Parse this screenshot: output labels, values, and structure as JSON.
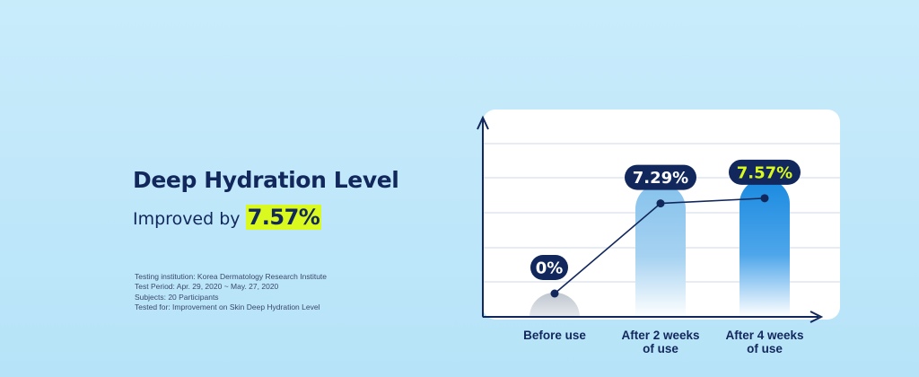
{
  "heading": {
    "title": "Deep Hydration Level",
    "improved_prefix": "Improved by",
    "improved_value": "7.57%"
  },
  "notes": [
    "Testing institution: Korea Dermatology Research Institute",
    "Test Period: Apr. 29, 2020 ~ May. 27, 2020",
    "Subjects: 20 Participants",
    "Tested for: Improvement on Skin Deep Hydration Level"
  ],
  "colors": {
    "navy": "#12285c",
    "highlight": "#d9f91f",
    "bar_light": "#86c2ec",
    "bar_dark": "#1a8ae0",
    "bar_base": "#c9cfd6"
  },
  "chart_data": {
    "type": "bar",
    "categories": [
      "Before use",
      "After 2 weeks of use",
      "After 4 weeks of use"
    ],
    "category_lines": [
      [
        "Before use"
      ],
      [
        "After 2 weeks",
        "of use"
      ],
      [
        "After 4 weeks",
        "of use"
      ]
    ],
    "values": [
      0,
      7.29,
      7.57
    ],
    "value_labels": [
      "0%",
      "7.29%",
      "7.57%"
    ],
    "overlay": "line",
    "grid": true,
    "legend": "none"
  }
}
